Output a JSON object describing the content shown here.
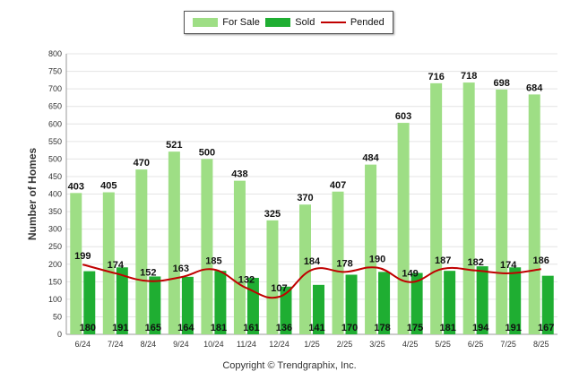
{
  "legend": {
    "for_sale": "For Sale",
    "sold": "Sold",
    "pended": "Pended"
  },
  "footer": "Copyright © Trendgraphix, Inc.",
  "colors": {
    "for_sale": "#9ede85",
    "sold": "#1fae32",
    "pended": "#c00000",
    "grid": "#e4e4e4"
  },
  "chart_data": {
    "type": "bar",
    "title": "",
    "xlabel": "",
    "ylabel": "Number of Homes",
    "ylim": [
      0,
      800
    ],
    "yticks": [
      0,
      50,
      100,
      150,
      200,
      250,
      300,
      350,
      400,
      450,
      500,
      550,
      600,
      650,
      700,
      750,
      800
    ],
    "grid": true,
    "legend_position": "top-center",
    "categories": [
      "6/24",
      "7/24",
      "8/24",
      "9/24",
      "10/24",
      "11/24",
      "12/24",
      "1/25",
      "2/25",
      "3/25",
      "4/25",
      "5/25",
      "6/25",
      "7/25",
      "8/25"
    ],
    "series": [
      {
        "name": "For Sale",
        "type": "bar",
        "values": [
          403,
          405,
          470,
          521,
          500,
          438,
          325,
          370,
          407,
          484,
          603,
          716,
          718,
          698,
          684
        ]
      },
      {
        "name": "Sold",
        "type": "bar",
        "values": [
          180,
          191,
          165,
          164,
          181,
          161,
          136,
          141,
          170,
          178,
          175,
          181,
          194,
          191,
          167
        ]
      },
      {
        "name": "Pended",
        "type": "line",
        "values": [
          199,
          174,
          152,
          163,
          185,
          132,
          107,
          184,
          178,
          190,
          149,
          187,
          182,
          174,
          186
        ]
      }
    ]
  }
}
